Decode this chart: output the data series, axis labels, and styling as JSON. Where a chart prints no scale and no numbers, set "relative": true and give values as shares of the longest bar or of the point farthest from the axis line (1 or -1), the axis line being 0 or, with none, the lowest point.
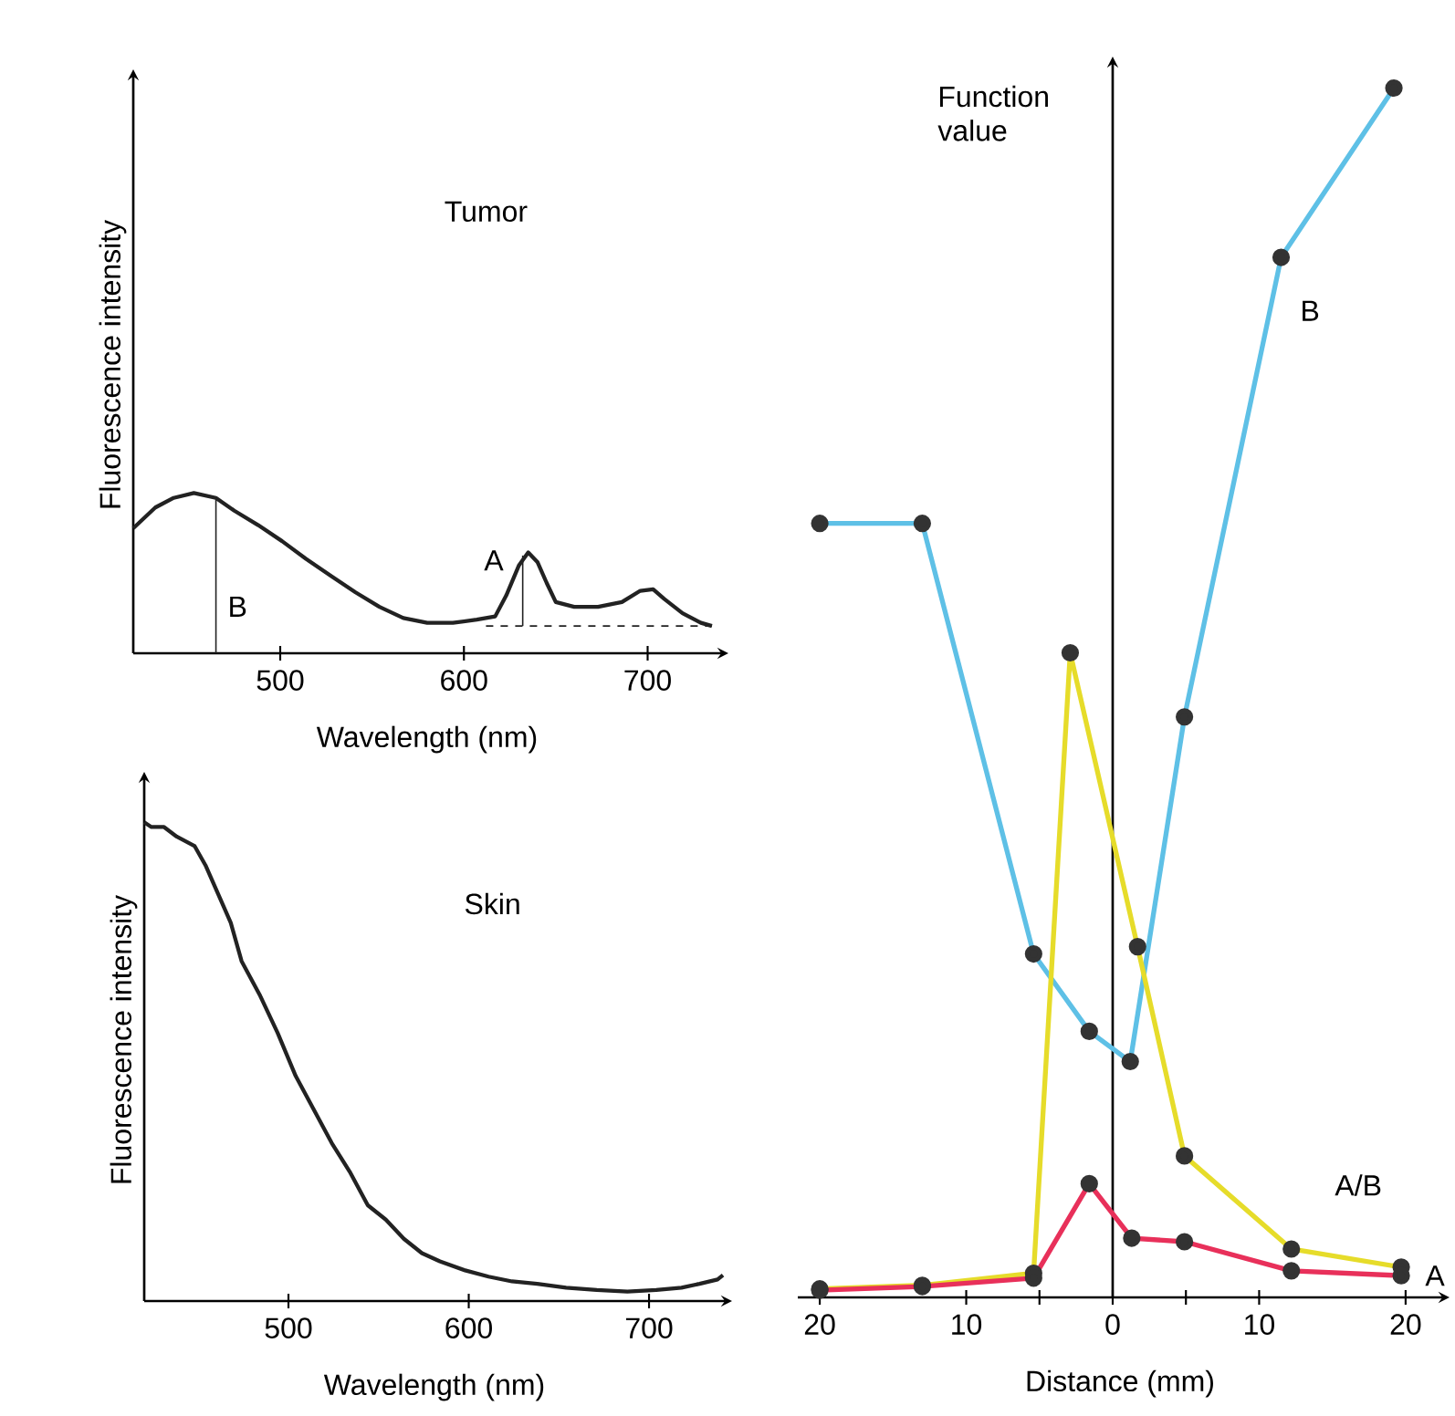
{
  "chart_data": [
    {
      "type": "line",
      "title": "Tumor",
      "xlabel": "Wavelength (nm)",
      "ylabel": "Fluorescence intensity",
      "relative": true,
      "xlim": [
        420,
        740
      ],
      "xticks": [
        500,
        600,
        700
      ],
      "legend": false,
      "marker": "none",
      "x": [
        420,
        432,
        442,
        453,
        465,
        475,
        488,
        501,
        514,
        528,
        541,
        554,
        567,
        580,
        594,
        607,
        617,
        623,
        630,
        635,
        640,
        645,
        650,
        660,
        673,
        686,
        696,
        703,
        709,
        719,
        729,
        735
      ],
      "series": [
        {
          "color": "#222222",
          "x": [
            465,
            465
          ],
          "values": [
            0,
            0.97
          ]
        },
        {
          "color": "#222222",
          "x": [
            632,
            632
          ],
          "values": [
            0.17,
            0.61
          ]
        },
        {
          "color": "#222222",
          "values": [
            0.78,
            0.91,
            0.97,
            1,
            0.97,
            0.89,
            0.8,
            0.7,
            0.59,
            0.48,
            0.38,
            0.29,
            0.22,
            0.19,
            0.19,
            0.21,
            0.23,
            0.36,
            0.55,
            0.63,
            0.57,
            0.44,
            0.32,
            0.29,
            0.29,
            0.32,
            0.39,
            0.4,
            0.34,
            0.25,
            0.19,
            0.17
          ]
        },
        {
          "color": "#222222",
          "line_style": "dashed",
          "x": [
            612,
            735
          ],
          "values": [
            0.17,
            0.17
          ]
        }
      ],
      "annotations": [
        "B",
        "A"
      ]
    },
    {
      "type": "line",
      "title": "Skin",
      "xlabel": "Wavelength (nm)",
      "ylabel": "Fluorescence intensity",
      "relative": true,
      "xlim": [
        420,
        742
      ],
      "xticks": [
        500,
        600,
        700
      ],
      "legend": false,
      "marker": "none",
      "x": [
        420,
        424,
        431,
        438,
        448,
        454,
        461,
        468,
        474,
        484,
        494,
        504,
        514,
        524,
        534,
        544,
        554,
        564,
        574,
        584,
        598,
        611,
        624,
        638,
        654,
        671,
        688,
        704,
        718,
        728,
        738,
        741
      ],
      "series": [
        {
          "color": "#222222",
          "values": [
            1,
            0.99,
            0.99,
            0.97,
            0.95,
            0.91,
            0.85,
            0.79,
            0.71,
            0.64,
            0.56,
            0.47,
            0.4,
            0.33,
            0.27,
            0.2,
            0.17,
            0.13,
            0.1,
            0.083,
            0.064,
            0.051,
            0.041,
            0.036,
            0.028,
            0.023,
            0.02,
            0.023,
            0.028,
            0.036,
            0.045,
            0.054
          ]
        }
      ]
    },
    {
      "type": "line",
      "xlabel": "Distance (mm)",
      "ylabel": "Function value",
      "relative": true,
      "xlim": [
        -21.5,
        22.5
      ],
      "legend": false,
      "marker": "circle",
      "xticks": [
        {
          "value": -20,
          "label": "20"
        },
        {
          "value": -10,
          "label": "10"
        },
        {
          "value": -5,
          "label": null
        },
        0,
        {
          "value": 5,
          "label": null
        },
        10,
        20
      ],
      "series": [
        {
          "name": "B",
          "color": "#5ec0e6",
          "x": [
            -20,
            -13,
            -5.4,
            -1.6,
            1.2,
            4.9,
            11.5,
            19.2
          ],
          "values": [
            0.64,
            0.64,
            0.284,
            0.22,
            0.195,
            0.48,
            0.86,
            1
          ]
        },
        {
          "name": "A/B",
          "color": "#e6dc2a",
          "x": [
            -20,
            -13,
            -5.4,
            -2.9,
            1.7,
            4.9,
            12.2,
            19.7
          ],
          "values": [
            0.007,
            0.01,
            0.02,
            0.533,
            0.29,
            0.117,
            0.04,
            0.025
          ]
        },
        {
          "name": "A",
          "color": "#e8305a",
          "x": [
            -20,
            -13,
            -5.4,
            -1.6,
            1.3,
            4.9,
            12.2,
            19.7
          ],
          "values": [
            0.006,
            0.009,
            0.016,
            0.094,
            0.049,
            0.046,
            0.022,
            0.018
          ]
        }
      ]
    }
  ]
}
